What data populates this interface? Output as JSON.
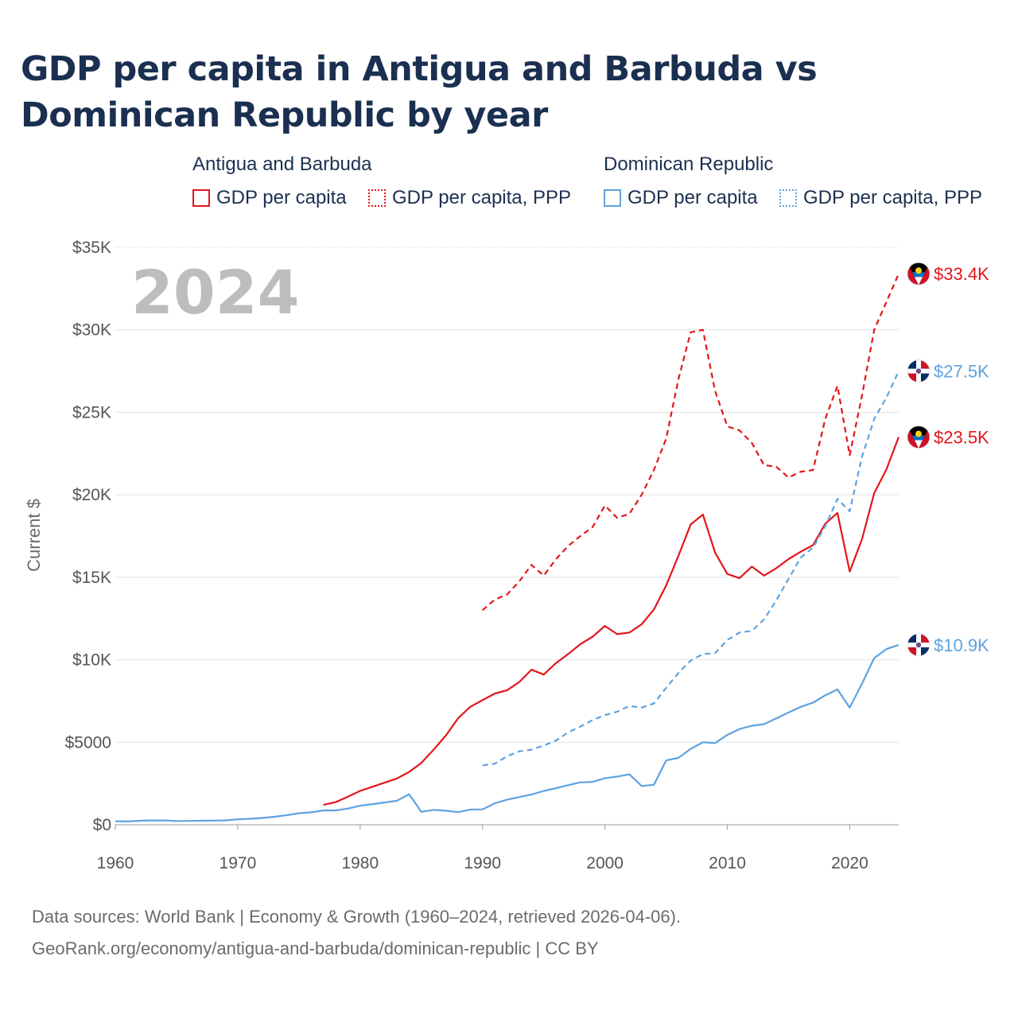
{
  "chart_data": {
    "type": "line",
    "title": "GDP per capita in Antigua and Barbuda vs Dominican Republic by year",
    "ylabel": "Current $",
    "xlabel": "",
    "xlim": [
      1960,
      2024
    ],
    "ylim": [
      0,
      35000
    ],
    "y_ticks": [
      {
        "value": 0,
        "label": "$0"
      },
      {
        "value": 5000,
        "label": "$5000"
      },
      {
        "value": 10000,
        "label": "$10K"
      },
      {
        "value": 15000,
        "label": "$15K"
      },
      {
        "value": 20000,
        "label": "$20K"
      },
      {
        "value": 25000,
        "label": "$25K"
      },
      {
        "value": 30000,
        "label": "$30K"
      },
      {
        "value": 35000,
        "label": "$35K"
      }
    ],
    "x_ticks": [
      {
        "value": 1960,
        "label": "1960"
      },
      {
        "value": 1970,
        "label": "1970"
      },
      {
        "value": 1980,
        "label": "1980"
      },
      {
        "value": 1990,
        "label": "1990"
      },
      {
        "value": 2000,
        "label": "2000"
      },
      {
        "value": 2010,
        "label": "2010"
      },
      {
        "value": 2020,
        "label": "2020"
      }
    ],
    "year_label": "2024",
    "legend_groups": [
      {
        "country": "Antigua and Barbuda",
        "items": [
          "GDP per capita",
          "GDP per capita, PPP"
        ]
      },
      {
        "country": "Dominican Republic",
        "items": [
          "GDP per capita",
          "GDP per capita, PPP"
        ]
      }
    ],
    "series": [
      {
        "name": "Antigua and Barbuda GDP per capita",
        "color": "#e3161c",
        "dash": "solid",
        "end_label": "$23.5K",
        "flag": "antigua",
        "points": [
          [
            1977,
            1200
          ],
          [
            1978,
            1370
          ],
          [
            1979,
            1700
          ],
          [
            1980,
            2050
          ],
          [
            1981,
            2300
          ],
          [
            1982,
            2550
          ],
          [
            1983,
            2800
          ],
          [
            1984,
            3200
          ],
          [
            1985,
            3750
          ],
          [
            1986,
            4550
          ],
          [
            1987,
            5400
          ],
          [
            1988,
            6450
          ],
          [
            1989,
            7150
          ],
          [
            1990,
            7550
          ],
          [
            1991,
            7950
          ],
          [
            1992,
            8150
          ],
          [
            1993,
            8650
          ],
          [
            1994,
            9400
          ],
          [
            1995,
            9100
          ],
          [
            1996,
            9800
          ],
          [
            1997,
            10350
          ],
          [
            1998,
            10950
          ],
          [
            1999,
            11400
          ],
          [
            2000,
            12050
          ],
          [
            2001,
            11550
          ],
          [
            2002,
            11650
          ],
          [
            2003,
            12150
          ],
          [
            2004,
            13050
          ],
          [
            2005,
            14500
          ],
          [
            2006,
            16300
          ],
          [
            2007,
            18200
          ],
          [
            2008,
            18800
          ],
          [
            2009,
            16500
          ],
          [
            2010,
            15200
          ],
          [
            2011,
            14950
          ],
          [
            2012,
            15650
          ],
          [
            2013,
            15100
          ],
          [
            2014,
            15550
          ],
          [
            2015,
            16100
          ],
          [
            2016,
            16550
          ],
          [
            2017,
            16950
          ],
          [
            2018,
            18250
          ],
          [
            2019,
            18900
          ],
          [
            2020,
            15350
          ],
          [
            2021,
            17300
          ],
          [
            2022,
            20100
          ],
          [
            2023,
            21550
          ],
          [
            2024,
            23500
          ]
        ]
      },
      {
        "name": "Antigua and Barbuda GDP per capita, PPP",
        "color": "#e3161c",
        "dash": "dashed",
        "end_label": "$33.4K",
        "flag": "antigua",
        "points": [
          [
            1990,
            13000
          ],
          [
            1991,
            13650
          ],
          [
            1992,
            13950
          ],
          [
            1993,
            14750
          ],
          [
            1994,
            15750
          ],
          [
            1995,
            15100
          ],
          [
            1996,
            16100
          ],
          [
            1997,
            16900
          ],
          [
            1998,
            17500
          ],
          [
            1999,
            18050
          ],
          [
            2000,
            19350
          ],
          [
            2001,
            18600
          ],
          [
            2002,
            18850
          ],
          [
            2003,
            20000
          ],
          [
            2004,
            21500
          ],
          [
            2005,
            23400
          ],
          [
            2006,
            27000
          ],
          [
            2007,
            29850
          ],
          [
            2008,
            30000
          ],
          [
            2009,
            26300
          ],
          [
            2010,
            24150
          ],
          [
            2011,
            23900
          ],
          [
            2012,
            23150
          ],
          [
            2013,
            21800
          ],
          [
            2014,
            21700
          ],
          [
            2015,
            21050
          ],
          [
            2016,
            21400
          ],
          [
            2017,
            21500
          ],
          [
            2018,
            24600
          ],
          [
            2019,
            26600
          ],
          [
            2020,
            22400
          ],
          [
            2021,
            26000
          ],
          [
            2022,
            30000
          ],
          [
            2023,
            31700
          ],
          [
            2024,
            33400
          ]
        ]
      },
      {
        "name": "Dominican Republic GDP per capita",
        "color": "#5ea3e0",
        "dash": "solid",
        "end_label": "$10.9K",
        "flag": "dominican",
        "points": [
          [
            1960,
            210
          ],
          [
            1961,
            200
          ],
          [
            1962,
            240
          ],
          [
            1963,
            265
          ],
          [
            1964,
            260
          ],
          [
            1965,
            225
          ],
          [
            1966,
            230
          ],
          [
            1967,
            240
          ],
          [
            1968,
            250
          ],
          [
            1969,
            265
          ],
          [
            1970,
            330
          ],
          [
            1971,
            360
          ],
          [
            1972,
            410
          ],
          [
            1973,
            480
          ],
          [
            1974,
            580
          ],
          [
            1975,
            700
          ],
          [
            1976,
            750
          ],
          [
            1977,
            870
          ],
          [
            1978,
            870
          ],
          [
            1979,
            980
          ],
          [
            1980,
            1150
          ],
          [
            1981,
            1250
          ],
          [
            1982,
            1350
          ],
          [
            1983,
            1450
          ],
          [
            1984,
            1850
          ],
          [
            1985,
            780
          ],
          [
            1986,
            900
          ],
          [
            1987,
            850
          ],
          [
            1988,
            760
          ],
          [
            1989,
            920
          ],
          [
            1990,
            930
          ],
          [
            1991,
            1300
          ],
          [
            1992,
            1520
          ],
          [
            1993,
            1680
          ],
          [
            1994,
            1830
          ],
          [
            1995,
            2050
          ],
          [
            1996,
            2220
          ],
          [
            1997,
            2400
          ],
          [
            1998,
            2570
          ],
          [
            1999,
            2600
          ],
          [
            2000,
            2820
          ],
          [
            2001,
            2920
          ],
          [
            2002,
            3050
          ],
          [
            2003,
            2350
          ],
          [
            2004,
            2420
          ],
          [
            2005,
            3900
          ],
          [
            2006,
            4050
          ],
          [
            2007,
            4600
          ],
          [
            2008,
            5000
          ],
          [
            2009,
            4950
          ],
          [
            2010,
            5450
          ],
          [
            2011,
            5800
          ],
          [
            2012,
            6000
          ],
          [
            2013,
            6100
          ],
          [
            2014,
            6450
          ],
          [
            2015,
            6800
          ],
          [
            2016,
            7150
          ],
          [
            2017,
            7400
          ],
          [
            2018,
            7850
          ],
          [
            2019,
            8200
          ],
          [
            2020,
            7100
          ],
          [
            2021,
            8550
          ],
          [
            2022,
            10100
          ],
          [
            2023,
            10650
          ],
          [
            2024,
            10900
          ]
        ]
      },
      {
        "name": "Dominican Republic GDP per capita, PPP",
        "color": "#5ea3e0",
        "dash": "dashed",
        "end_label": "$27.5K",
        "flag": "dominican",
        "points": [
          [
            1990,
            3600
          ],
          [
            1991,
            3700
          ],
          [
            1992,
            4150
          ],
          [
            1993,
            4450
          ],
          [
            1994,
            4550
          ],
          [
            1995,
            4800
          ],
          [
            1996,
            5100
          ],
          [
            1997,
            5600
          ],
          [
            1998,
            5950
          ],
          [
            1999,
            6350
          ],
          [
            2000,
            6650
          ],
          [
            2001,
            6850
          ],
          [
            2002,
            7200
          ],
          [
            2003,
            7100
          ],
          [
            2004,
            7350
          ],
          [
            2005,
            8300
          ],
          [
            2006,
            9200
          ],
          [
            2007,
            9950
          ],
          [
            2008,
            10350
          ],
          [
            2009,
            10400
          ],
          [
            2010,
            11200
          ],
          [
            2011,
            11650
          ],
          [
            2012,
            11750
          ],
          [
            2013,
            12450
          ],
          [
            2014,
            13600
          ],
          [
            2015,
            14900
          ],
          [
            2016,
            16200
          ],
          [
            2017,
            16800
          ],
          [
            2018,
            18100
          ],
          [
            2019,
            19750
          ],
          [
            2020,
            19000
          ],
          [
            2021,
            22300
          ],
          [
            2022,
            24600
          ],
          [
            2023,
            25900
          ],
          [
            2024,
            27500
          ]
        ]
      }
    ]
  },
  "legend": {
    "ab_title": "Antigua and Barbuda",
    "ab_item1": "GDP per capita",
    "ab_item2": "GDP per capita, PPP",
    "dr_title": "Dominican Republic",
    "dr_item1": "GDP per capita",
    "dr_item2": "GDP per capita, PPP"
  },
  "footer": {
    "line1": "Data sources: World Bank | Economy & Growth (1960–2024, retrieved 2026-04-06).",
    "line2": "GeoRank.org/economy/antigua-and-barbuda/dominican-republic | CC BY"
  },
  "colors": {
    "antigua": "#e3161c",
    "dominican": "#5ea3e0",
    "title": "#1b3050"
  }
}
